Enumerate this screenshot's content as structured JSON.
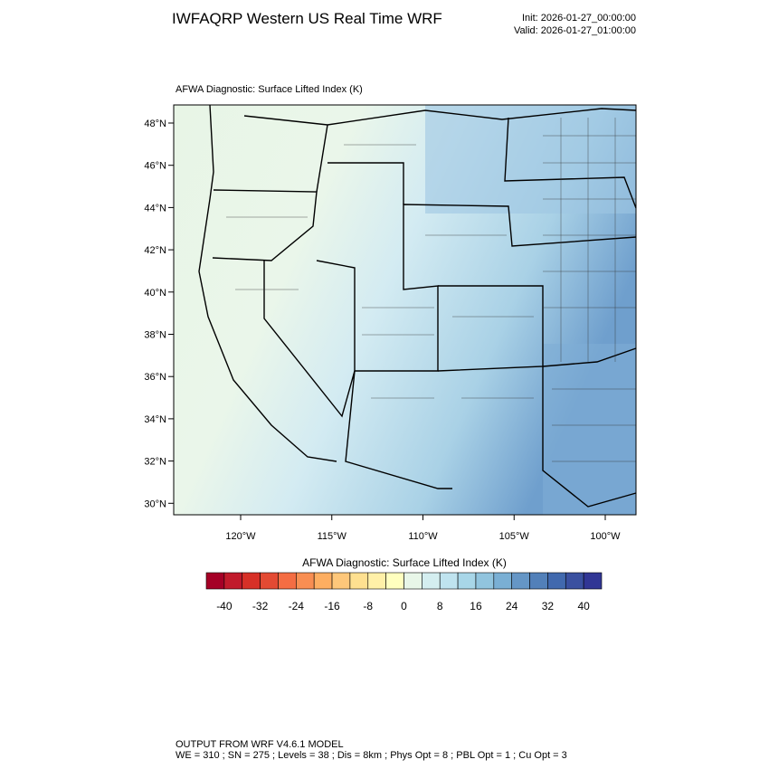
{
  "header": {
    "title": "IWFAQRP Western US Real Time WRF",
    "init": "Init: 2026-01-27_00:00:00",
    "valid": "Valid: 2026-01-27_01:00:00"
  },
  "map": {
    "title": "AFWA Diagnostic: Surface Lifted Index   (K)",
    "lat_labels": [
      "48°N",
      "46°N",
      "44°N",
      "42°N",
      "40°N",
      "38°N",
      "36°N",
      "34°N",
      "32°N",
      "30°N"
    ],
    "lon_labels": [
      "120°W",
      "115°W",
      "110°W",
      "105°W",
      "100°W"
    ]
  },
  "colorbar": {
    "title": "AFWA Diagnostic: Surface Lifted Index  (K)",
    "colors": [
      "#a50026",
      "#c11a2b",
      "#d73027",
      "#e34a33",
      "#f46d43",
      "#f88e52",
      "#fdae61",
      "#fec77a",
      "#fee090",
      "#fff0a8",
      "#ffffbf",
      "#e8f6e8",
      "#d4eef0",
      "#bfe3ef",
      "#a8d6e8",
      "#91c4de",
      "#7aafd4",
      "#6596c6",
      "#5280b9",
      "#4169ae",
      "#3a50a0",
      "#313695"
    ],
    "labels": [
      -40,
      -32,
      -24,
      -16,
      -8,
      0,
      8,
      16,
      24,
      32,
      40
    ]
  },
  "footer": {
    "line1": "OUTPUT FROM WRF V4.6.1 MODEL",
    "line2": "WE = 310 ; SN = 275 ; Levels = 38 ; Dis = 8km ; Phys Opt = 8 ; PBL Opt = 1 ; Cu Opt = 3"
  }
}
